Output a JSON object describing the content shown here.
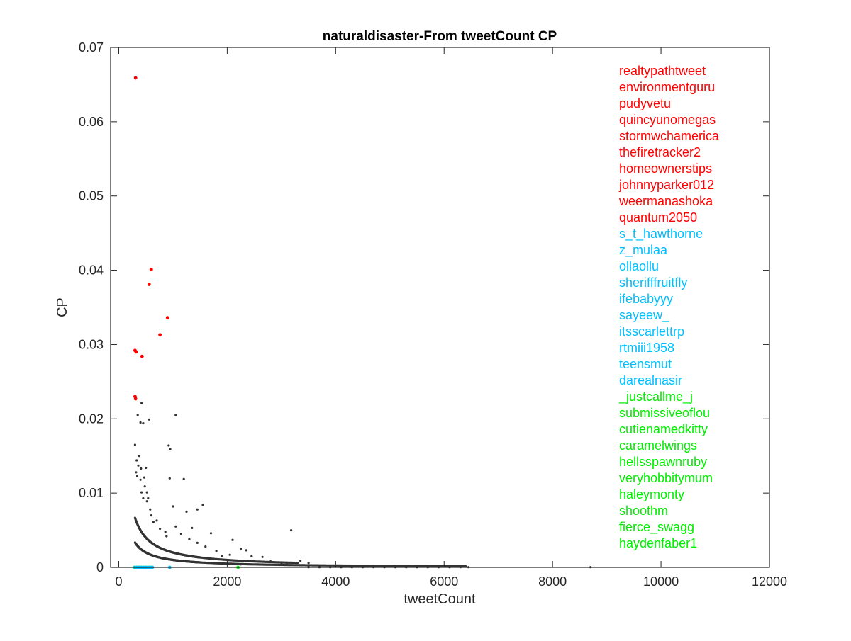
{
  "chart_data": {
    "type": "scatter",
    "title": "naturaldisaster-From tweetCount CP",
    "xlabel": "tweetCount",
    "ylabel": "CP",
    "xlim": [
      -150,
      12000
    ],
    "ylim": [
      0,
      0.07
    ],
    "xticks": [
      0,
      2000,
      4000,
      6000,
      8000,
      10000,
      12000
    ],
    "xtick_labels": [
      "0",
      "2000",
      "4000",
      "6000",
      "8000",
      "10000",
      "12000"
    ],
    "yticks": [
      0,
      0.01,
      0.02,
      0.03,
      0.04,
      0.05,
      0.06,
      0.07
    ],
    "ytick_labels": [
      "0",
      "0.01",
      "0.02",
      "0.03",
      "0.04",
      "0.05",
      "0.06",
      "0.07"
    ],
    "grid": false,
    "legend_position": "top-right",
    "colors": {
      "red": "#ff0000",
      "cyan": "#00bfff",
      "green": "#00ee00",
      "other": "#333333"
    },
    "label_groups": [
      {
        "color": "red",
        "names": [
          "realtypathtweet",
          "environmentguru",
          "pudyvetu",
          "quincyunomegas",
          "stormwchamerica",
          "thefiretracker2",
          "homeownerstips",
          "johnnyparker012",
          "weermanashoka",
          "quantum2050"
        ]
      },
      {
        "color": "cyan",
        "names": [
          "s_t_hawthorne",
          "z_mulaa",
          "ollaollu",
          "sherifffruitfly",
          "ifebabyyy",
          "sayeew_",
          "itsscarlettrp",
          "rtmiii1958",
          "teensmut",
          "darealnasir"
        ]
      },
      {
        "color": "green",
        "names": [
          "_justcallme_j",
          "submissiveoflou",
          "cutienamedkitty",
          "caramelwings",
          "hellsspawnruby",
          "veryhobbitymum",
          "haleymonty",
          "shoothm",
          "fierce_swagg",
          "haydenfaber1"
        ]
      }
    ],
    "series": [
      {
        "color": "red",
        "points": [
          [
            310,
            0.0659
          ],
          [
            600,
            0.0401
          ],
          [
            560,
            0.0381
          ],
          [
            900,
            0.0336
          ],
          [
            760,
            0.0313
          ],
          [
            300,
            0.0292
          ],
          [
            320,
            0.029
          ],
          [
            430,
            0.0284
          ],
          [
            300,
            0.023
          ],
          [
            310,
            0.0227
          ]
        ]
      },
      {
        "color": "cyan",
        "points": [
          [
            300,
            0.0
          ],
          [
            340,
            0.0
          ],
          [
            380,
            0.0
          ],
          [
            420,
            0.0
          ],
          [
            460,
            0.0
          ],
          [
            500,
            0.0
          ],
          [
            540,
            0.0
          ],
          [
            580,
            0.0
          ],
          [
            620,
            0.0
          ],
          [
            940,
            0.0
          ]
        ]
      },
      {
        "color": "green",
        "points": [
          [
            290,
            0.0
          ],
          [
            330,
            0.0
          ],
          [
            370,
            0.0
          ],
          [
            410,
            0.0
          ],
          [
            450,
            0.0
          ],
          [
            490,
            0.0
          ],
          [
            530,
            0.0
          ],
          [
            570,
            0.0
          ],
          [
            610,
            0.0
          ],
          [
            2200,
            0.0
          ]
        ]
      },
      {
        "color": "other",
        "points": [
          [
            350,
            0.0205
          ],
          [
            420,
            0.0221
          ],
          [
            400,
            0.0195
          ],
          [
            450,
            0.0194
          ],
          [
            560,
            0.0199
          ],
          [
            1050,
            0.0205
          ],
          [
            300,
            0.0165
          ],
          [
            920,
            0.0164
          ],
          [
            950,
            0.0159
          ],
          [
            330,
            0.0144
          ],
          [
            380,
            0.015
          ],
          [
            360,
            0.0137
          ],
          [
            410,
            0.0133
          ],
          [
            500,
            0.0134
          ],
          [
            470,
            0.0121
          ],
          [
            320,
            0.0128
          ],
          [
            340,
            0.0123
          ],
          [
            400,
            0.0118
          ],
          [
            940,
            0.012
          ],
          [
            1200,
            0.0119
          ],
          [
            480,
            0.0109
          ],
          [
            420,
            0.0101
          ],
          [
            450,
            0.0093
          ],
          [
            520,
            0.0089
          ],
          [
            1000,
            0.0082
          ],
          [
            1550,
            0.0084
          ],
          [
            1450,
            0.0078
          ],
          [
            1250,
            0.0075
          ],
          [
            700,
            0.0063
          ],
          [
            860,
            0.0048
          ],
          [
            1050,
            0.0055
          ],
          [
            1350,
            0.0053
          ],
          [
            1700,
            0.0046
          ],
          [
            2100,
            0.0037
          ],
          [
            2250,
            0.0025
          ],
          [
            2350,
            0.0023
          ],
          [
            3180,
            0.005
          ],
          [
            2050,
            0.0017
          ],
          [
            2450,
            0.0015
          ],
          [
            2650,
            0.0014
          ],
          [
            3350,
            0.0009
          ],
          [
            3500,
            0.0006
          ],
          [
            2800,
            0.0008
          ],
          [
            3000,
            0.0006
          ],
          [
            3100,
            0.0005
          ],
          [
            1800,
            0.0022
          ],
          [
            1900,
            0.0015
          ],
          [
            1600,
            0.0028
          ],
          [
            1450,
            0.0033
          ],
          [
            1300,
            0.0038
          ],
          [
            1150,
            0.0045
          ],
          [
            640,
            0.0061
          ],
          [
            760,
            0.0052
          ],
          [
            600,
            0.007
          ],
          [
            580,
            0.0078
          ],
          [
            540,
            0.0093
          ],
          [
            520,
            0.0101
          ],
          [
            880,
            0.0042
          ],
          [
            1700,
            0.0011
          ],
          [
            2250,
            0.0004
          ]
        ]
      }
    ],
    "curve_bands": [
      {
        "k": 2,
        "x_from": 300,
        "x_to": 3300
      },
      {
        "k": 1,
        "x_from": 300,
        "x_to": 6400
      }
    ],
    "sparse_floor_points": [
      3500,
      3700,
      3900,
      4100,
      4300,
      4500,
      4700,
      4900,
      5100,
      5300,
      5500,
      5700,
      5900,
      6100,
      6300,
      6450,
      8700
    ]
  }
}
